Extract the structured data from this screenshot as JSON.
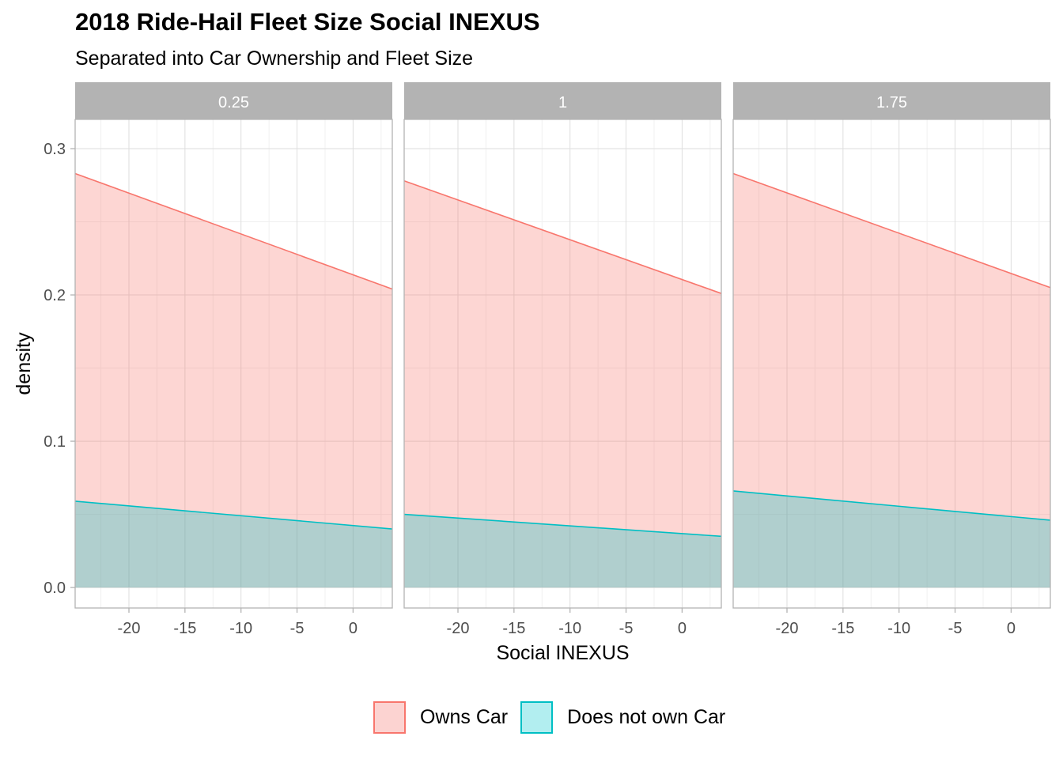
{
  "chart_data": {
    "type": "area",
    "title": "2018 Ride-Hail Fleet Size Social INEXUS",
    "subtitle": "Separated into Car Ownership and Fleet Size",
    "xlabel": "Social INEXUS",
    "ylabel": "density",
    "xlim": [
      -24.8,
      3.5
    ],
    "ylim": [
      -0.014,
      0.32
    ],
    "x_ticks": [
      -20,
      -15,
      -10,
      -5,
      0
    ],
    "x_tick_labels": [
      "-20",
      "-15",
      "-10",
      "-5",
      "0"
    ],
    "y_ticks": [
      0.0,
      0.1,
      0.2,
      0.3
    ],
    "y_tick_labels": [
      "0.0",
      "0.1",
      "0.2",
      "0.3"
    ],
    "grid": true,
    "legend_position": "bottom",
    "colors": {
      "owns_line": "#F8766D",
      "owns_fill": "#FCD3D1",
      "not_own_line": "#00BFC4",
      "not_own_fill": "#B2EEF0",
      "overlap_fill": "#B2CFCF",
      "strip": "#B3B3B3"
    },
    "series_names": [
      "Owns Car",
      "Does not own Car"
    ],
    "facets": [
      {
        "label": "0.25",
        "series": [
          {
            "name": "Owns Car",
            "x": [
              -24.8,
              3.5
            ],
            "y": [
              0.283,
              0.204
            ]
          },
          {
            "name": "Does not own Car",
            "x": [
              -24.8,
              3.5
            ],
            "y": [
              0.059,
              0.04
            ]
          }
        ]
      },
      {
        "label": "1",
        "series": [
          {
            "name": "Owns Car",
            "x": [
              -24.8,
              3.5
            ],
            "y": [
              0.278,
              0.201
            ]
          },
          {
            "name": "Does not own Car",
            "x": [
              -24.8,
              3.5
            ],
            "y": [
              0.05,
              0.035
            ]
          }
        ]
      },
      {
        "label": "1.75",
        "series": [
          {
            "name": "Owns Car",
            "x": [
              -24.8,
              3.5
            ],
            "y": [
              0.283,
              0.205
            ]
          },
          {
            "name": "Does not own Car",
            "x": [
              -24.8,
              3.5
            ],
            "y": [
              0.066,
              0.046
            ]
          }
        ]
      }
    ]
  }
}
